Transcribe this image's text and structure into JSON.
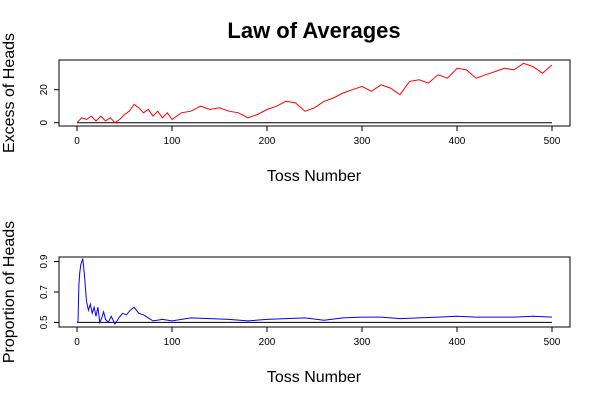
{
  "chart_data": {
    "title": "Law of Averages",
    "panels": [
      {
        "type": "line",
        "ylabel": "Excess of Heads",
        "xlabel": "Toss Number",
        "xlim": [
          0,
          500
        ],
        "ylim": [
          -2,
          38
        ],
        "xticks": [
          0,
          100,
          200,
          300,
          400,
          500
        ],
        "yticks": [
          0,
          20
        ],
        "series_color": "#ff0000",
        "reference_color": "#000000",
        "reference_y": 0,
        "x": [
          0,
          5,
          10,
          15,
          20,
          25,
          30,
          35,
          40,
          45,
          50,
          55,
          60,
          65,
          70,
          75,
          80,
          85,
          90,
          95,
          100,
          110,
          120,
          130,
          140,
          150,
          160,
          170,
          180,
          190,
          200,
          210,
          220,
          230,
          240,
          250,
          260,
          270,
          280,
          290,
          300,
          310,
          320,
          330,
          340,
          350,
          360,
          370,
          380,
          390,
          400,
          410,
          420,
          430,
          440,
          450,
          460,
          470,
          480,
          490,
          500
        ],
        "values": [
          0,
          3,
          2,
          4,
          1,
          4,
          1,
          3,
          0,
          2,
          5,
          7,
          11,
          9,
          6,
          8,
          4,
          7,
          3,
          6,
          2,
          6,
          7,
          10,
          8,
          9,
          7,
          6,
          3,
          5,
          8,
          10,
          13,
          12,
          7,
          9,
          13,
          15,
          18,
          20,
          22,
          19,
          23,
          21,
          17,
          25,
          26,
          24,
          29,
          27,
          33,
          32,
          27,
          29,
          31,
          33,
          32,
          36,
          34,
          30,
          35
        ]
      },
      {
        "type": "line",
        "ylabel": "Proportion of Heads",
        "xlabel": "Toss Number",
        "xlim": [
          0,
          500
        ],
        "ylim": [
          0.47,
          0.93
        ],
        "xticks": [
          0,
          100,
          200,
          300,
          400,
          500
        ],
        "yticks": [
          0.5,
          0.7,
          0.9
        ],
        "series_color": "#0000ff",
        "reference_color": "#000000",
        "reference_y": 0.5,
        "x": [
          1,
          2,
          3,
          4,
          5,
          6,
          7,
          8,
          9,
          10,
          12,
          14,
          16,
          18,
          20,
          22,
          24,
          26,
          28,
          30,
          33,
          36,
          40,
          44,
          48,
          52,
          56,
          60,
          65,
          70,
          75,
          80,
          90,
          100,
          120,
          140,
          160,
          180,
          200,
          220,
          240,
          260,
          280,
          300,
          320,
          340,
          360,
          380,
          400,
          420,
          440,
          460,
          480,
          500
        ],
        "values": [
          0.5,
          0.75,
          0.83,
          0.88,
          0.9,
          0.92,
          0.86,
          0.8,
          0.72,
          0.64,
          0.58,
          0.62,
          0.56,
          0.6,
          0.54,
          0.6,
          0.5,
          0.53,
          0.57,
          0.52,
          0.5,
          0.54,
          0.49,
          0.53,
          0.56,
          0.55,
          0.58,
          0.6,
          0.56,
          0.55,
          0.53,
          0.51,
          0.52,
          0.51,
          0.53,
          0.525,
          0.52,
          0.51,
          0.52,
          0.525,
          0.53,
          0.515,
          0.53,
          0.535,
          0.535,
          0.525,
          0.53,
          0.535,
          0.54,
          0.535,
          0.535,
          0.535,
          0.54,
          0.535
        ]
      }
    ]
  }
}
